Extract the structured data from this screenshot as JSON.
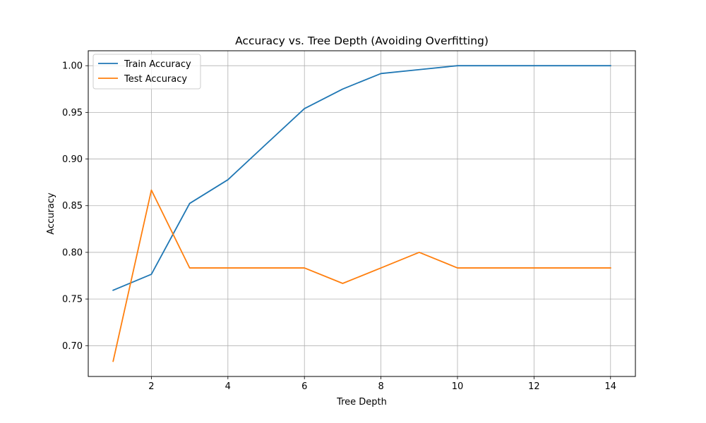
{
  "chart_data": {
    "type": "line",
    "title": "Accuracy vs. Tree Depth (Avoiding Overfitting)",
    "xlabel": "Tree Depth",
    "ylabel": "Accuracy",
    "x": [
      1,
      2,
      3,
      4,
      5,
      6,
      7,
      8,
      9,
      10,
      11,
      12,
      13,
      14
    ],
    "xlim": [
      0.35,
      14.65
    ],
    "ylim": [
      0.667,
      1.016
    ],
    "xticks": [
      2,
      4,
      6,
      8,
      10,
      12,
      14
    ],
    "yticks": [
      0.7,
      0.75,
      0.8,
      0.85,
      0.9,
      0.95,
      1.0
    ],
    "xtick_labels": [
      "2",
      "4",
      "6",
      "8",
      "10",
      "12",
      "14"
    ],
    "ytick_labels": [
      "0.70",
      "0.75",
      "0.80",
      "0.85",
      "0.90",
      "0.95",
      "1.00"
    ],
    "grid": true,
    "legend_position": "top-left",
    "series": [
      {
        "name": "Train Accuracy",
        "color": "#1f77b4",
        "values": [
          0.7594,
          0.7765,
          0.8524,
          0.8778,
          0.916,
          0.954,
          0.975,
          0.9916,
          0.9958,
          1.0,
          1.0,
          1.0,
          1.0,
          1.0
        ]
      },
      {
        "name": "Test Accuracy",
        "color": "#ff7f0e",
        "values": [
          0.6833,
          0.8667,
          0.7833,
          0.7833,
          0.7833,
          0.7833,
          0.7667,
          0.7833,
          0.8,
          0.7833,
          0.7833,
          0.7833,
          0.7833,
          0.7833
        ]
      }
    ]
  }
}
